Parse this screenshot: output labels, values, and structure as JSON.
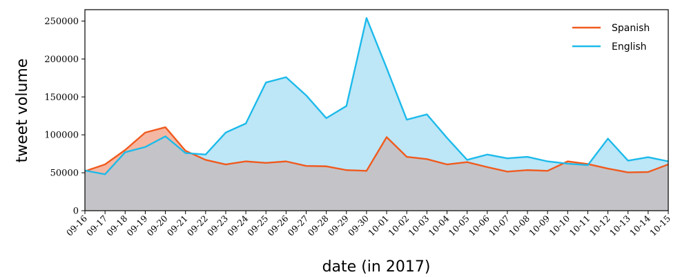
{
  "chart_data": {
    "type": "area",
    "title": "",
    "xlabel": "date (in 2017)",
    "ylabel": "tweet volume",
    "ylim": [
      0,
      265000
    ],
    "yticks": [
      0,
      50000,
      100000,
      150000,
      200000,
      250000
    ],
    "grid": false,
    "legend_position": "top-right",
    "categories": [
      "09-16",
      "09-17",
      "09-18",
      "09-19",
      "09-20",
      "09-21",
      "09-22",
      "09-23",
      "09-24",
      "09-25",
      "09-26",
      "09-27",
      "09-28",
      "09-29",
      "09-30",
      "10-01",
      "10-02",
      "10-03",
      "10-04",
      "10-05",
      "10-06",
      "10-07",
      "10-08",
      "10-09",
      "10-10",
      "10-11",
      "10-12",
      "10-13",
      "10-14",
      "10-15"
    ],
    "series": [
      {
        "name": "Spanish",
        "color": "#f05a1e",
        "fill": "#f4b7a3",
        "values": [
          52000,
          61000,
          80000,
          103000,
          110000,
          79000,
          67000,
          61000,
          65000,
          63000,
          65000,
          59000,
          58500,
          53500,
          52500,
          97000,
          71000,
          68000,
          61000,
          64000,
          57500,
          51500,
          53500,
          52500,
          65000,
          61500,
          55500,
          50500,
          51000,
          61000
        ]
      },
      {
        "name": "English",
        "color": "#1cbaea",
        "fill": "#bde6f7",
        "values": [
          53000,
          48000,
          77000,
          84000,
          98000,
          76000,
          74000,
          103000,
          115000,
          169000,
          176000,
          152000,
          122000,
          138000,
          254000,
          188000,
          120000,
          127000,
          96000,
          67000,
          74000,
          69000,
          71000,
          65000,
          62000,
          60000,
          95000,
          66000,
          70500,
          65000
        ]
      }
    ],
    "overlap_fill": "#c4c4c8"
  }
}
